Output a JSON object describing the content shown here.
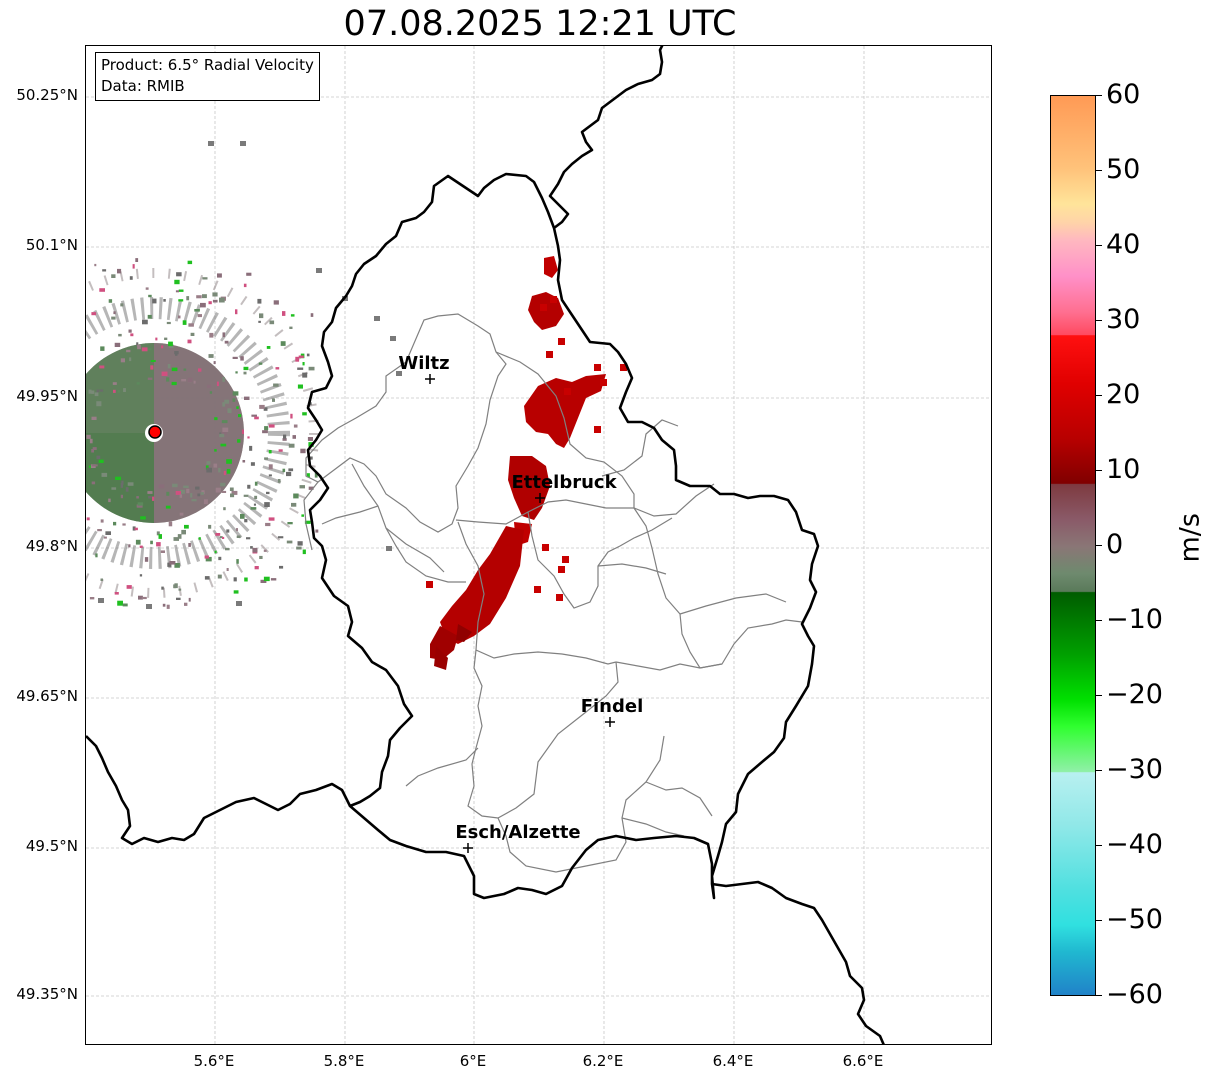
{
  "title": "07.08.2025 12:21 UTC",
  "info": {
    "product": "Product: 6.5° Radial Velocity",
    "data": "Data: RMIB"
  },
  "lat_ticks": [
    "50.25°N",
    "50.1°N",
    "49.95°N",
    "49.8°N",
    "49.65°N",
    "49.5°N",
    "49.35°N"
  ],
  "lon_ticks": [
    "5.6°E",
    "5.8°E",
    "6°E",
    "6.2°E",
    "6.4°E",
    "6.6°E"
  ],
  "cities": [
    {
      "name": "Wiltz",
      "lon": 5.93,
      "lat": 49.967
    },
    {
      "name": "Ettelbruck",
      "lon": 6.1,
      "lat": 49.847
    },
    {
      "name": "Findel",
      "lon": 6.21,
      "lat": 49.627
    },
    {
      "name": "Esch/Alzette",
      "lon": 5.99,
      "lat": 49.5
    }
  ],
  "radar_site": {
    "lon": 5.505,
    "lat": 49.915,
    "color": "#ff0000"
  },
  "colorbar": {
    "label": "m/s",
    "min": -60,
    "max": 60,
    "ticks": [
      "60",
      "50",
      "40",
      "30",
      "20",
      "10",
      "0",
      "−10",
      "−20",
      "−30",
      "−40",
      "−50",
      "−60"
    ]
  },
  "colors": {
    "outbound": "#c00000",
    "inbound": "#5f7d5f",
    "border": "#000000",
    "canton": "#808080",
    "grid": "#c8c8c8"
  }
}
